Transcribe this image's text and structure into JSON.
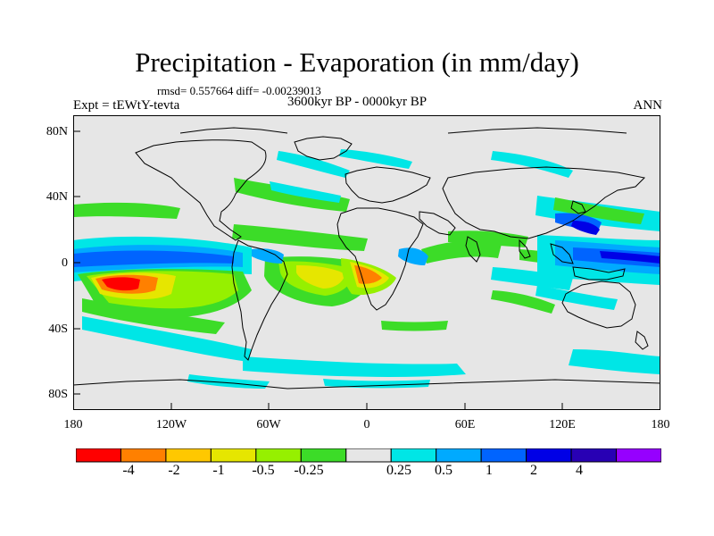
{
  "title": "Precipitation - Evaporation (in mm/day)",
  "stats": "rmsd= 0.557664 diff= -0.00239013",
  "experiment": "Expt = tEWtY-tevta",
  "period": "3600kyr BP - 0000kyr BP",
  "season": "ANN",
  "latitude_labels": [
    "80N",
    "40N",
    "0",
    "40S",
    "80S"
  ],
  "longitude_labels": [
    "180",
    "120W",
    "60W",
    "0",
    "60E",
    "120E",
    "180"
  ],
  "colorbar": {
    "colors": [
      "#ff0000",
      "#ff8000",
      "#ffc800",
      "#e6e600",
      "#96f000",
      "#3cdc28",
      "#e6e6e6",
      "#00e6e6",
      "#00aaff",
      "#0064ff",
      "#0000e6",
      "#2800b4",
      "#9600ff"
    ],
    "labels": [
      "-4",
      "-2",
      "-1",
      "-0.5",
      "-0.25",
      "0.25",
      "0.5",
      "1",
      "2",
      "4"
    ]
  }
}
